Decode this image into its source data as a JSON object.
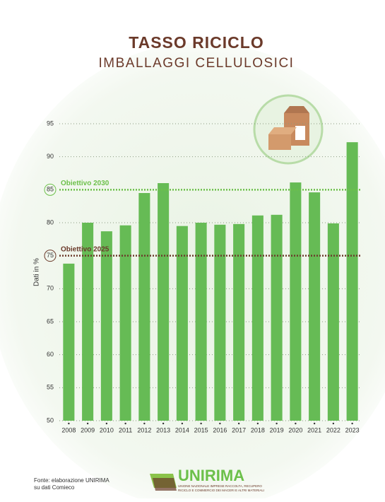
{
  "chart_data": {
    "type": "bar",
    "title": "TASSO RICICLO",
    "subtitle": "IMBALLAGGI CELLULOSICI",
    "y_label": "Dati in %",
    "categories": [
      "2008",
      "2009",
      "2010",
      "2011",
      "2012",
      "2013",
      "2014",
      "2015",
      "2016",
      "2017",
      "2018",
      "2019",
      "2020",
      "2021",
      "2022",
      "2023"
    ],
    "values": [
      73.8,
      80.0,
      78.7,
      79.6,
      84.5,
      86.0,
      79.5,
      80.0,
      79.7,
      79.8,
      81.1,
      81.2,
      86.1,
      84.6,
      79.9,
      92.2
    ],
    "color": "#66bb55",
    "ylim": [
      50,
      95
    ],
    "yticks": [
      50,
      55,
      60,
      65,
      70,
      75,
      80,
      85,
      90,
      95
    ],
    "grid": true,
    "reference_lines": [
      {
        "value": 85,
        "label": "Obiettivo 2030",
        "color": "#6cc04a"
      },
      {
        "value": 75,
        "label": "Obiettivo 2025",
        "color": "#6b3a2a"
      }
    ]
  },
  "footer": {
    "source": [
      "Fonte: elaborazione UNIRIMA",
      "su dati Comieco"
    ],
    "logo": "UNIRIMA",
    "tagline": [
      "UNIONE NAZIONALE IMPRESE RACCOLTA, RECUPERO",
      "RICICLO E COMMERCIO DEI MACERI E ALTRI MATERIALI"
    ]
  }
}
